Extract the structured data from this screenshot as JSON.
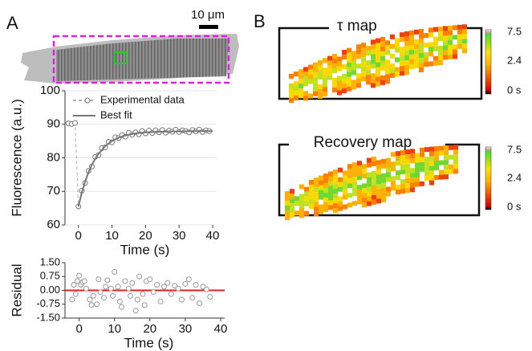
{
  "figure": {
    "panel_a": "A",
    "panel_b": "B",
    "scale_bar": "10 μm",
    "tau_map_title": "τ map",
    "recovery_map_title": "Recovery map",
    "tau_colorbar": [
      "7.5",
      "2.4",
      "0 s"
    ],
    "recovery_colorbar": [
      "7.5",
      "2.4",
      "0 s"
    ]
  },
  "chart_data": [
    {
      "type": "line",
      "xlabel": "Time (s)",
      "ylabel": "Fluorescence (a.u.)",
      "xlim": [
        -4,
        40
      ],
      "xticks": [
        0,
        10,
        20,
        30,
        40
      ],
      "ylim": [
        60,
        100
      ],
      "yticks": [
        60,
        70,
        80,
        90,
        100
      ],
      "grid": true,
      "legend": "top-left",
      "series": [
        {
          "name": "Experimental data",
          "color": "#777777",
          "style": "dashed-markers",
          "x": [
            -3,
            -2,
            -1,
            0,
            1,
            2,
            3,
            4,
            5,
            6,
            7,
            8,
            9,
            10,
            11,
            12,
            13,
            14,
            15,
            16,
            17,
            18,
            19,
            20,
            21,
            22,
            23,
            24,
            25,
            26,
            27,
            28,
            29,
            30,
            31,
            32,
            33,
            34,
            35,
            36,
            37,
            38,
            39
          ],
          "values": [
            90.3,
            90.1,
            90.4,
            65.5,
            70.2,
            72.5,
            76.1,
            77.4,
            80.3,
            80.8,
            82.9,
            83.1,
            84.8,
            84.6,
            86.1,
            85.9,
            86.8,
            86.3,
            87.5,
            86.9,
            87.6,
            87.0,
            88.0,
            87.3,
            88.1,
            87.4,
            88.2,
            87.6,
            88.3,
            87.5,
            88.1,
            87.8,
            88.4,
            87.7,
            88.2,
            88.0,
            87.6,
            88.3,
            87.9,
            88.4,
            87.7,
            88.2,
            88.0
          ]
        },
        {
          "name": "Best fit",
          "color": "#777777",
          "style": "solid",
          "x": [
            0,
            1,
            2,
            3,
            4,
            5,
            6,
            8,
            10,
            12,
            14,
            16,
            18,
            20,
            25,
            30,
            35,
            40
          ],
          "values": [
            65.5,
            69.6,
            72.9,
            75.7,
            77.9,
            79.7,
            81.2,
            83.5,
            85.0,
            86.0,
            86.7,
            87.1,
            87.4,
            87.6,
            87.8,
            87.9,
            88.0,
            88.0
          ]
        }
      ]
    },
    {
      "type": "scatter",
      "xlabel": "Time (s)",
      "ylabel": "Residual",
      "xlim": [
        -4,
        40
      ],
      "xticks": [
        0,
        10,
        20,
        30,
        40
      ],
      "ylim": [
        -1.5,
        1.5
      ],
      "yticks": [
        {
          "value": 1.5,
          "label": "1.50"
        },
        {
          "value": 0.75,
          "label": "0.75"
        },
        {
          "value": 0,
          "label": "0.00"
        },
        {
          "value": -0.75,
          "label": "-0.75"
        },
        {
          "value": -1.5,
          "label": "-1.50"
        }
      ],
      "reference_line": {
        "value": 0,
        "color": "#e02020"
      },
      "color": "#999999",
      "x": [
        -2,
        -1.5,
        -1,
        -0.5,
        0,
        0.5,
        1,
        1.5,
        2,
        3,
        3.5,
        4,
        5,
        5.5,
        6,
        7,
        7.5,
        8,
        9,
        9.5,
        10,
        11,
        11.5,
        12,
        13,
        14,
        14.5,
        15,
        16,
        16.5,
        17,
        18,
        18.5,
        19,
        20,
        21,
        22,
        23,
        24,
        25,
        26,
        27,
        28,
        29,
        30,
        31,
        32,
        33,
        34,
        35,
        36,
        37
      ],
      "values": [
        -0.5,
        0.3,
        -0.2,
        0.5,
        0.8,
        0.3,
        0.45,
        0.5,
        0.1,
        -0.5,
        -0.8,
        -0.3,
        -0.75,
        0.6,
        -0.1,
        -0.4,
        0.2,
        0.55,
        0.1,
        -0.3,
        1.0,
        0.2,
        -0.6,
        -0.9,
        0.5,
        0.1,
        -0.3,
        0.4,
        -1.1,
        -0.5,
        0.75,
        -0.2,
        -0.8,
        0.5,
        0.6,
        -0.1,
        0.3,
        -0.6,
        0.2,
        0.4,
        -0.2,
        0.25,
        0.1,
        -0.5,
        0.35,
        0.6,
        -0.4,
        0.3,
        -0.7,
        0.2,
        0.05,
        -0.35
      ]
    }
  ]
}
